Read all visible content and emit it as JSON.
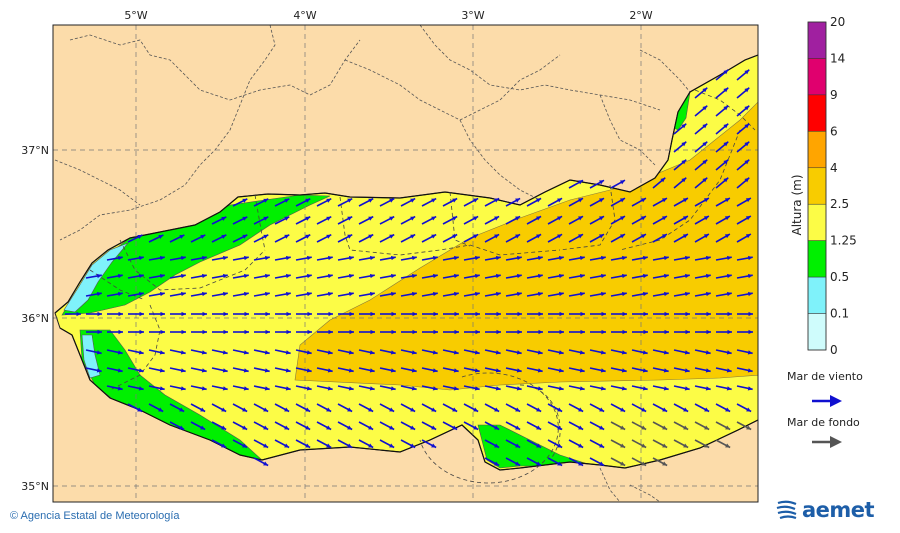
{
  "map": {
    "lon_labels": [
      "5°W",
      "4°W",
      "3°W",
      "2°W"
    ],
    "lat_labels": [
      "37°N",
      "36°N",
      "35°N"
    ],
    "colors": {
      "land": "#fcdcaa",
      "band_0_01": "#cffcfc",
      "band_01_05": "#7ff2fa",
      "band_05_125": "#00f000",
      "band_125_25": "#fcfc46",
      "band_25_4": "#f8cc00",
      "wind_sea_arrow": "#1010d0",
      "swell_arrow": "#555555"
    }
  },
  "colorbar": {
    "title": "Altura (m)",
    "levels": [
      "20",
      "14",
      "9",
      "6",
      "4",
      "2.5",
      "1.25",
      "0.5",
      "0.1",
      "0"
    ],
    "colors": [
      "#a020a0",
      "#e0006e",
      "#ff0000",
      "#ffa500",
      "#f8cc00",
      "#fcfc46",
      "#00f000",
      "#7ff2fa",
      "#cffcfc"
    ]
  },
  "legend": {
    "wind_sea_label": "Mar de viento",
    "swell_label": "Mar de fondo"
  },
  "footer": {
    "credit": "© Agencia Estatal de Meteorología",
    "logo_text": "aemet"
  }
}
